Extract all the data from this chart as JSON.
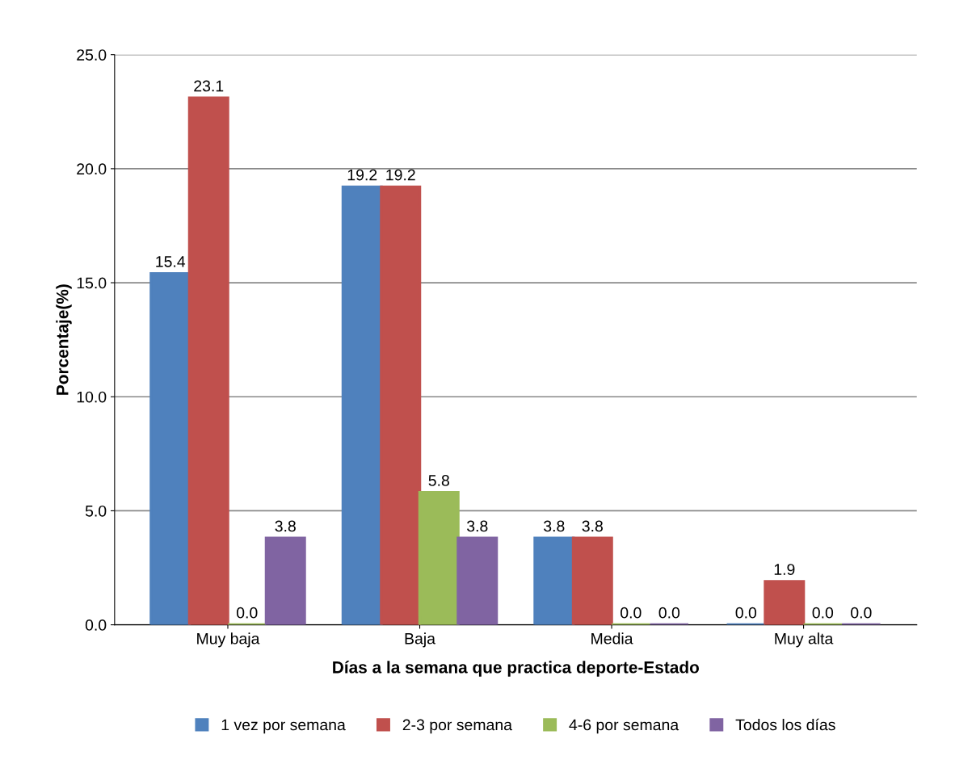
{
  "chart_data": {
    "type": "bar",
    "xlabel": "Días a la semana que practica deporte-Estado",
    "ylabel": "Porcentaje(%)",
    "categories": [
      "Muy baja",
      "Baja",
      "Media",
      "Muy alta"
    ],
    "series": [
      {
        "name": "1 vez por semana",
        "color": "#4f81bd",
        "values": [
          15.4,
          19.2,
          3.8,
          0.0
        ],
        "value_labels": [
          "15.4",
          "19.2",
          "3.8",
          "0.0"
        ]
      },
      {
        "name": "2-3 por semana",
        "color": "#c0504d",
        "values": [
          23.1,
          19.2,
          3.8,
          1.9
        ],
        "value_labels": [
          "23.1",
          "19.2",
          "3.8",
          "1.9"
        ]
      },
      {
        "name": "4-6 por semana",
        "color": "#9bbb59",
        "values": [
          0.0,
          5.8,
          0.0,
          0.0
        ],
        "value_labels": [
          "0.0",
          "5.8",
          "0.0",
          "0.0"
        ]
      },
      {
        "name": "Todos los días",
        "color": "#8064a2",
        "values": [
          3.8,
          3.8,
          0.0,
          0.0
        ],
        "value_labels": [
          "3.8",
          "3.8",
          "0.0",
          "0.0"
        ]
      }
    ],
    "ylim": [
      0,
      25
    ],
    "yticks": [
      {
        "value": 0,
        "label": "0.0"
      },
      {
        "value": 5,
        "label": "5.0"
      },
      {
        "value": 10,
        "label": "10.0"
      },
      {
        "value": 15,
        "label": "15.0"
      },
      {
        "value": 20,
        "label": "20.0"
      },
      {
        "value": 25,
        "label": "25.0"
      }
    ],
    "grid": "y",
    "legend": "bottom"
  }
}
